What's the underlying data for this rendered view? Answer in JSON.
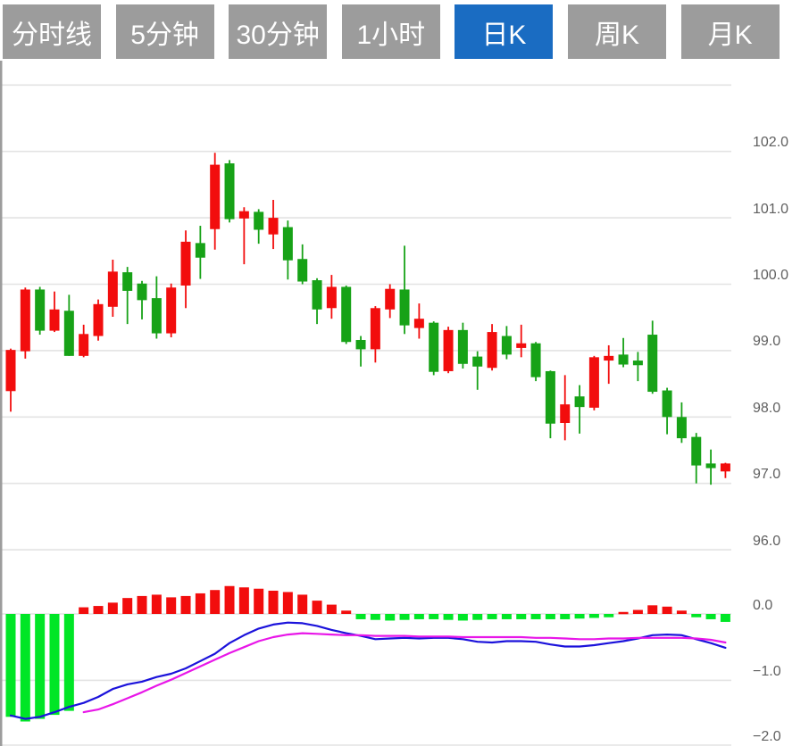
{
  "tabs": [
    {
      "key": "tab-timeline",
      "label": "分时线",
      "active": false
    },
    {
      "key": "tab-5min",
      "label": "5分钟",
      "active": false
    },
    {
      "key": "tab-30min",
      "label": "30分钟",
      "active": false
    },
    {
      "key": "tab-1hour",
      "label": "1小时",
      "active": false
    },
    {
      "key": "tab-daily-k",
      "label": "日K",
      "active": true
    },
    {
      "key": "tab-weekly-k",
      "label": "周K",
      "active": false
    },
    {
      "key": "tab-monthly-k",
      "label": "月K",
      "active": false
    }
  ],
  "colors": {
    "up": "#f20d0d",
    "down": "#17a217",
    "hist_up": "#f20d0d",
    "hist_down": "#00e626",
    "dif_line": "#1b12db",
    "dea_line": "#e816e8",
    "grid": "#e3e3e3",
    "axis_text": "#5f5f5f",
    "tab_bg": "#9c9c9c",
    "tab_active_bg": "#1a6cc2",
    "tab_text": "#ffffff",
    "border": "#9c9c9c"
  },
  "chart_data": {
    "type": "candlestick",
    "title": "",
    "legend_position": "none",
    "grid": true,
    "price_axis": {
      "side": "right",
      "tick_labels": [
        "102.0",
        "101.0",
        "100.0",
        "99.0",
        "98.0",
        "97.0",
        "96.0"
      ],
      "tick_values": [
        102.0,
        101.0,
        100.0,
        99.0,
        98.0,
        97.0,
        96.0
      ],
      "extra_gridline_values": [
        103.0
      ],
      "range_shown": [
        96.0,
        103.0
      ]
    },
    "candles_ohlc": [
      [
        98.39,
        99.03,
        98.08,
        99.01
      ],
      [
        98.99,
        99.95,
        98.88,
        99.92
      ],
      [
        99.92,
        99.96,
        99.24,
        99.3
      ],
      [
        99.3,
        99.89,
        99.28,
        99.62
      ],
      [
        99.6,
        99.84,
        98.92,
        98.92
      ],
      [
        98.92,
        99.39,
        98.9,
        99.25
      ],
      [
        99.22,
        99.77,
        99.15,
        99.7
      ],
      [
        99.66,
        100.37,
        99.51,
        100.19
      ],
      [
        100.18,
        100.26,
        99.4,
        99.9
      ],
      [
        100.01,
        100.05,
        99.47,
        99.76
      ],
      [
        99.79,
        100.12,
        99.18,
        99.26
      ],
      [
        99.26,
        100.01,
        99.2,
        99.95
      ],
      [
        99.98,
        100.81,
        99.64,
        100.64
      ],
      [
        100.62,
        100.88,
        100.08,
        100.4
      ],
      [
        100.83,
        101.98,
        100.52,
        101.8
      ],
      [
        101.82,
        101.87,
        100.93,
        100.98
      ],
      [
        100.99,
        101.16,
        100.3,
        101.1
      ],
      [
        101.09,
        101.13,
        100.61,
        100.82
      ],
      [
        100.75,
        101.27,
        100.53,
        101.0
      ],
      [
        100.86,
        100.96,
        100.07,
        100.36
      ],
      [
        100.38,
        100.6,
        100.0,
        100.04
      ],
      [
        100.06,
        100.09,
        99.4,
        99.62
      ],
      [
        99.64,
        100.14,
        99.48,
        99.96
      ],
      [
        99.96,
        99.98,
        99.1,
        99.13
      ],
      [
        99.16,
        99.22,
        98.76,
        99.02
      ],
      [
        99.02,
        99.67,
        98.82,
        99.64
      ],
      [
        99.62,
        100.0,
        99.49,
        99.93
      ],
      [
        99.92,
        100.58,
        99.25,
        99.38
      ],
      [
        99.34,
        99.71,
        99.18,
        99.48
      ],
      [
        99.42,
        99.44,
        98.63,
        98.68
      ],
      [
        98.69,
        99.36,
        98.66,
        99.31
      ],
      [
        99.31,
        99.42,
        98.73,
        98.8
      ],
      [
        98.91,
        98.99,
        98.41,
        98.76
      ],
      [
        98.74,
        99.4,
        98.7,
        99.28
      ],
      [
        99.22,
        99.37,
        98.87,
        98.94
      ],
      [
        99.04,
        99.39,
        98.9,
        99.11
      ],
      [
        99.11,
        99.13,
        98.54,
        98.6
      ],
      [
        98.69,
        98.7,
        97.68,
        97.9
      ],
      [
        97.91,
        98.63,
        97.65,
        98.19
      ],
      [
        98.31,
        98.48,
        97.75,
        98.15
      ],
      [
        98.14,
        98.92,
        98.1,
        98.9
      ],
      [
        98.85,
        99.08,
        98.5,
        98.92
      ],
      [
        98.94,
        99.19,
        98.75,
        98.79
      ],
      [
        98.85,
        98.98,
        98.54,
        98.78
      ],
      [
        99.24,
        99.45,
        98.35,
        98.38
      ],
      [
        98.4,
        98.44,
        97.74,
        98.0
      ],
      [
        98.0,
        98.22,
        97.61,
        97.68
      ],
      [
        97.7,
        97.76,
        97.0,
        97.27
      ],
      [
        97.3,
        97.51,
        96.98,
        97.23
      ],
      [
        97.18,
        97.31,
        97.08,
        97.3
      ]
    ],
    "indicator": {
      "name": "MACD",
      "axis": {
        "side": "right",
        "tick_labels": [
          "0.0",
          "−1.0",
          "−2.0"
        ],
        "tick_values": [
          0.0,
          -1.0,
          -2.0
        ]
      },
      "histogram": [
        -1.55,
        -1.62,
        -1.58,
        -1.52,
        -1.46,
        0.1,
        0.12,
        0.17,
        0.24,
        0.27,
        0.29,
        0.25,
        0.27,
        0.31,
        0.36,
        0.42,
        0.4,
        0.38,
        0.35,
        0.33,
        0.29,
        0.2,
        0.14,
        0.05,
        -0.08,
        -0.09,
        -0.1,
        -0.09,
        -0.08,
        -0.08,
        -0.09,
        -0.1,
        -0.09,
        -0.08,
        -0.08,
        -0.08,
        -0.08,
        -0.08,
        -0.08,
        -0.07,
        -0.06,
        -0.05,
        0.03,
        0.06,
        0.13,
        0.11,
        0.05,
        -0.05,
        -0.08,
        -0.12
      ],
      "series": [
        {
          "name": "DIF",
          "values": [
            -1.53,
            -1.58,
            -1.55,
            -1.48,
            -1.4,
            -1.34,
            -1.25,
            -1.13,
            -1.06,
            -1.02,
            -0.95,
            -0.9,
            -0.82,
            -0.71,
            -0.6,
            -0.44,
            -0.32,
            -0.22,
            -0.16,
            -0.13,
            -0.14,
            -0.18,
            -0.24,
            -0.29,
            -0.33,
            -0.38,
            -0.37,
            -0.36,
            -0.37,
            -0.36,
            -0.36,
            -0.38,
            -0.42,
            -0.43,
            -0.41,
            -0.41,
            -0.42,
            -0.46,
            -0.49,
            -0.49,
            -0.47,
            -0.44,
            -0.41,
            -0.37,
            -0.32,
            -0.31,
            -0.32,
            -0.38,
            -0.44,
            -0.51
          ]
        },
        {
          "name": "DEA",
          "values": [
            null,
            null,
            null,
            null,
            null,
            -1.48,
            -1.44,
            -1.36,
            -1.27,
            -1.18,
            -1.08,
            -0.99,
            -0.89,
            -0.79,
            -0.69,
            -0.59,
            -0.5,
            -0.41,
            -0.35,
            -0.31,
            -0.29,
            -0.3,
            -0.31,
            -0.32,
            -0.32,
            -0.33,
            -0.33,
            -0.33,
            -0.34,
            -0.34,
            -0.34,
            -0.35,
            -0.35,
            -0.35,
            -0.35,
            -0.35,
            -0.36,
            -0.36,
            -0.37,
            -0.38,
            -0.38,
            -0.37,
            -0.37,
            -0.36,
            -0.36,
            -0.36,
            -0.36,
            -0.37,
            -0.39,
            -0.43
          ]
        }
      ]
    }
  }
}
